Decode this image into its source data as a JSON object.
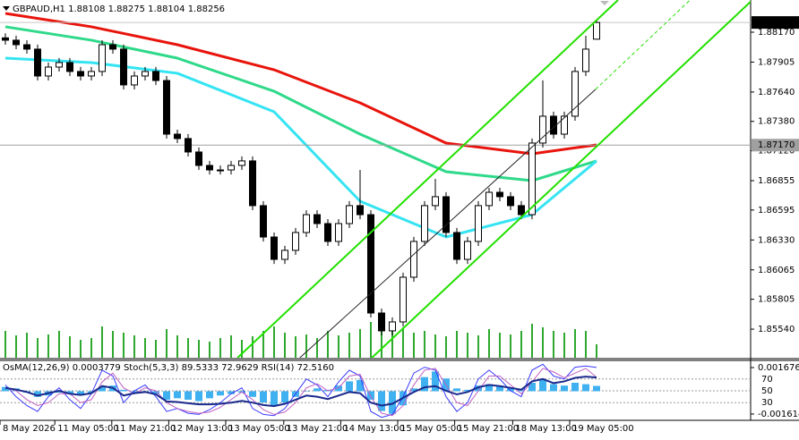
{
  "chart_data": [
    {
      "type": "candlestick",
      "title": "GBPAUD,H1 1.88108 1.88275 1.88104 1.88256",
      "bull_color": "#ffffff",
      "bear_color": "#000000",
      "grid": false,
      "open": [
        1.8812,
        1.88099,
        1.88059,
        1.8802,
        1.87782,
        1.87861,
        1.87901,
        1.87822,
        1.87782,
        1.87822,
        1.88059,
        1.8802,
        1.87703,
        1.87782,
        1.87822,
        1.87742,
        1.87267,
        1.87228,
        1.87109,
        1.8699,
        1.8695,
        1.8695,
        1.8699,
        1.8703,
        1.86634,
        1.86356,
        1.86158,
        1.86238,
        1.86396,
        1.86554,
        1.86475,
        1.86317,
        1.86475,
        1.86634,
        1.86554,
        1.85683,
        1.85525,
        1.85604,
        1.86,
        1.86317,
        1.86634,
        1.86713,
        1.86396,
        1.86158,
        1.86317,
        1.86634,
        1.86752,
        1.86713,
        1.86634,
        1.86554,
        1.87188,
        1.87426,
        1.87267,
        1.87426,
        1.87822,
        1.88108
      ],
      "high": [
        1.8816,
        1.88139,
        1.88099,
        1.8806,
        1.87901,
        1.87941,
        1.87941,
        1.87862,
        1.87862,
        1.88099,
        1.88099,
        1.8806,
        1.87822,
        1.87862,
        1.87862,
        1.87782,
        1.87307,
        1.87268,
        1.87149,
        1.8703,
        1.8699,
        1.8703,
        1.8707,
        1.8707,
        1.86674,
        1.86396,
        1.86278,
        1.86436,
        1.86594,
        1.86594,
        1.86515,
        1.86515,
        1.86674,
        1.8695,
        1.86594,
        1.85723,
        1.85644,
        1.8604,
        1.86357,
        1.86674,
        1.86871,
        1.86753,
        1.86436,
        1.86357,
        1.86674,
        1.86792,
        1.86792,
        1.86753,
        1.86674,
        1.87228,
        1.87743,
        1.87466,
        1.87466,
        1.87862,
        1.88138,
        1.88275
      ],
      "low": [
        1.88059,
        1.88019,
        1.8798,
        1.87742,
        1.87742,
        1.87821,
        1.87782,
        1.87742,
        1.87742,
        1.87782,
        1.8798,
        1.87663,
        1.87663,
        1.87742,
        1.87702,
        1.87227,
        1.87188,
        1.87069,
        1.8695,
        1.8691,
        1.8691,
        1.8691,
        1.8695,
        1.86594,
        1.86316,
        1.86118,
        1.86118,
        1.86198,
        1.86356,
        1.86435,
        1.86277,
        1.86277,
        1.86435,
        1.86514,
        1.85643,
        1.85485,
        1.85485,
        1.85564,
        1.8596,
        1.86277,
        1.86594,
        1.86356,
        1.86118,
        1.86118,
        1.86277,
        1.86594,
        1.86673,
        1.86594,
        1.86514,
        1.86514,
        1.87148,
        1.87227,
        1.87227,
        1.87386,
        1.87782,
        1.88104
      ],
      "close": [
        1.88099,
        1.88059,
        1.8802,
        1.87782,
        1.87861,
        1.87901,
        1.87822,
        1.87782,
        1.87822,
        1.88059,
        1.8802,
        1.87703,
        1.87782,
        1.87822,
        1.87742,
        1.87267,
        1.87228,
        1.87109,
        1.8699,
        1.8695,
        1.8695,
        1.8699,
        1.8703,
        1.86634,
        1.86356,
        1.86158,
        1.86238,
        1.86396,
        1.86554,
        1.86475,
        1.86317,
        1.86475,
        1.86634,
        1.86554,
        1.85683,
        1.85525,
        1.85604,
        1.86,
        1.86317,
        1.86634,
        1.86713,
        1.86396,
        1.86158,
        1.86317,
        1.86634,
        1.86752,
        1.86713,
        1.86634,
        1.86554,
        1.87188,
        1.87426,
        1.87267,
        1.87426,
        1.87822,
        1.8802,
        1.88256
      ],
      "ylim": [
        1.85287,
        1.88455
      ],
      "yticks": [
        {
          "value": 1.8817,
          "label": "1.88170"
        },
        {
          "value": 1.87905,
          "label": "1.87905"
        },
        {
          "value": 1.8764,
          "label": "1.87640"
        },
        {
          "value": 1.8738,
          "label": "1.87380"
        },
        {
          "value": 1.8712,
          "label": "1.87120"
        },
        {
          "value": 1.86855,
          "label": "1.86855"
        },
        {
          "value": 1.86595,
          "label": "1.86595"
        },
        {
          "value": 1.8633,
          "label": "1.86330"
        },
        {
          "value": 1.86065,
          "label": "1.86065"
        },
        {
          "value": 1.85805,
          "label": "1.85805"
        },
        {
          "value": 1.8554,
          "label": "1.85540"
        }
      ],
      "xticks": [
        {
          "value": 0,
          "label": "8 May 2026"
        },
        {
          "value": 5.1,
          "label": "11 May 05:00"
        },
        {
          "value": 10.4,
          "label": "11 May 21:00"
        },
        {
          "value": 15.7,
          "label": "12 May 13:00"
        },
        {
          "value": 21,
          "label": "13 May 05:00"
        },
        {
          "value": 26.4,
          "label": "13 May 21:00"
        },
        {
          "value": 31.7,
          "label": "14 May 13:00"
        },
        {
          "value": 37,
          "label": "15 May 05:00"
        },
        {
          "value": 42.3,
          "label": "15 May 21:00"
        },
        {
          "value": 47.7,
          "label": "18 May 13:00"
        },
        {
          "value": 53,
          "label": "19 May 05:00"
        }
      ],
      "price_line": {
        "value": 1.8717,
        "label": "1.87170",
        "color": "#a0a0a0"
      },
      "last_price": {
        "value": 1.88256,
        "label": "1.88256",
        "color": "#000000"
      },
      "moving_averages": [
        {
          "color": "#e8140c",
          "x": [
            0,
            8,
            16,
            25,
            33,
            41,
            49,
            55
          ],
          "values": [
            1.88336,
            1.88218,
            1.88059,
            1.87837,
            1.87544,
            1.87188,
            1.87093,
            1.87172
          ]
        },
        {
          "color": "#2fd98a",
          "x": [
            0,
            8,
            16,
            25,
            33,
            41,
            49,
            55
          ],
          "values": [
            1.88218,
            1.88099,
            1.8794,
            1.87647,
            1.87267,
            1.86934,
            1.86855,
            1.8703
          ]
        },
        {
          "color": "#35e4f2",
          "x": [
            0,
            8,
            16,
            25,
            33,
            41,
            49,
            55
          ],
          "values": [
            1.8794,
            1.87901,
            1.87806,
            1.87465,
            1.86673,
            1.86356,
            1.86554,
            1.8703
          ]
        }
      ],
      "trendlines": [
        {
          "color": "#22e000",
          "dashed": false,
          "x": [
            21.6,
            57
          ],
          "values": [
            1.85287,
            1.88455
          ]
        },
        {
          "color": "#22e000",
          "dashed": false,
          "x": [
            34.1,
            69.5
          ],
          "values": [
            1.85287,
            1.88455
          ]
        },
        {
          "color": "#222222",
          "dashed": false,
          "x": [
            27.4,
            54.9
          ],
          "values": [
            1.85287,
            1.87663
          ]
        },
        {
          "color": "#22e000",
          "dashed": true,
          "x": [
            54.9,
            63.7
          ],
          "values": [
            1.87663,
            1.88455
          ]
        }
      ],
      "volume": {
        "color": "#2ea82e",
        "lim": [
          0,
          100
        ],
        "values": [
          30,
          25,
          28,
          22,
          26,
          30,
          24,
          20,
          22,
          35,
          30,
          28,
          25,
          22,
          20,
          32,
          25,
          22,
          20,
          18,
          22,
          25,
          20,
          24,
          30,
          35,
          28,
          24,
          26,
          22,
          30,
          25,
          28,
          32,
          40,
          38,
          35,
          34,
          28,
          30,
          26,
          24,
          30,
          28,
          25,
          32,
          28,
          26,
          30,
          38,
          34,
          30,
          28,
          32,
          30,
          15
        ]
      }
    },
    {
      "type": "oscillator",
      "title": "OsMA(12,26,9) 0.0003779 Stoch(5,3,3) 89.5333 72.9629 RSI(14) 72.5160",
      "ylim": [
        0,
        100
      ],
      "yticks": [
        30,
        50,
        70
      ],
      "y2lim": [
        -0.00206,
        0.00212
      ],
      "y2ticks": [
        0.001676,
        -0.001614
      ],
      "histogram": {
        "color": "#3fb0f0",
        "axis": "y2",
        "values": [
          0.0003,
          0.0002,
          -0.0001,
          -0.0004,
          -0.0003,
          -0.0001,
          -0.0002,
          -0.0003,
          -0.0001,
          0.0003,
          0.0004,
          0.0001,
          -0.0001,
          0,
          -0.0002,
          -0.0006,
          -0.0005,
          -0.0006,
          -0.0007,
          -0.0005,
          -0.0003,
          -0.0002,
          -0.0001,
          -0.0004,
          -0.0008,
          -0.001,
          -0.0008,
          -0.0004,
          0,
          0.0002,
          0.0001,
          0.0004,
          0.0007,
          0.0008,
          -0.0006,
          -0.0014,
          -0.0016,
          -0.001,
          0.0002,
          0.001,
          0.0014,
          0.0009,
          0.0002,
          0.0001,
          0.0004,
          0.0005,
          0.0004,
          0.0002,
          0.0001,
          0.0006,
          0.0008,
          0.0005,
          0.0004,
          0.0006,
          0.0005,
          0.0003779
        ]
      },
      "lines": [
        {
          "color": "#3a3aff",
          "width": 1,
          "values": [
            60,
            40,
            25,
            15,
            40,
            55,
            35,
            20,
            45,
            85,
            75,
            30,
            50,
            60,
            40,
            15,
            20,
            12,
            10,
            18,
            30,
            45,
            55,
            20,
            10,
            8,
            20,
            45,
            70,
            60,
            40,
            65,
            85,
            75,
            15,
            5,
            10,
            40,
            80,
            90,
            85,
            40,
            15,
            30,
            70,
            85,
            70,
            50,
            40,
            85,
            95,
            75,
            70,
            90,
            92,
            89.5333
          ]
        },
        {
          "color": "#c060c0",
          "width": 1,
          "values": [
            55,
            50,
            35,
            25,
            30,
            45,
            45,
            30,
            35,
            65,
            80,
            55,
            45,
            55,
            50,
            30,
            20,
            15,
            12,
            14,
            22,
            35,
            48,
            35,
            18,
            10,
            14,
            30,
            55,
            62,
            50,
            55,
            75,
            78,
            40,
            12,
            8,
            25,
            60,
            85,
            88,
            60,
            30,
            25,
            50,
            75,
            75,
            60,
            45,
            65,
            88,
            82,
            72,
            80,
            88,
            72.9629
          ]
        },
        {
          "color": "#1a2a8c",
          "width": 2,
          "values": [
            55,
            52,
            48,
            42,
            46,
            50,
            45,
            43,
            46,
            58,
            55,
            42,
            46,
            48,
            44,
            32,
            31,
            29,
            27,
            27,
            28,
            30,
            33,
            30,
            26,
            24,
            28,
            35,
            42,
            40,
            36,
            42,
            48,
            46,
            30,
            25,
            28,
            38,
            48,
            56,
            58,
            50,
            44,
            48,
            56,
            60,
            58,
            55,
            52,
            66,
            70,
            63,
            66,
            72,
            74,
            72.516
          ]
        }
      ]
    }
  ]
}
